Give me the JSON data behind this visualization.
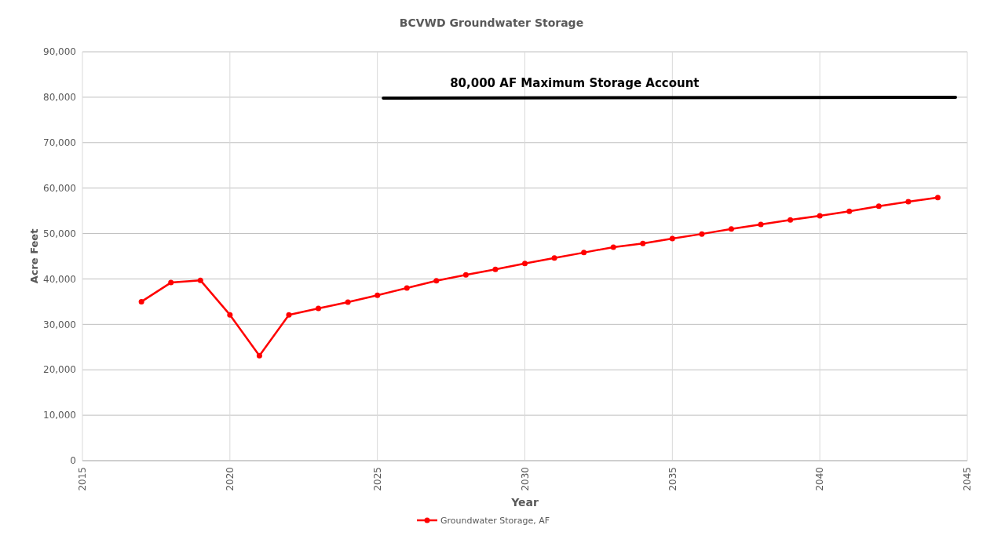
{
  "chart_data": {
    "type": "line",
    "title": "BCVWD Groundwater Storage",
    "xlabel": "Year",
    "ylabel": "Acre Feet",
    "xlim": [
      2015,
      2045
    ],
    "xticks": [
      2015,
      2020,
      2025,
      2030,
      2035,
      2040,
      2045
    ],
    "ylim": [
      0,
      90000
    ],
    "yticks": [
      {
        "value": 0,
        "label": "0"
      },
      {
        "value": 10000,
        "label": "10,000"
      },
      {
        "value": 20000,
        "label": "20,000"
      },
      {
        "value": 30000,
        "label": "30,000"
      },
      {
        "value": 40000,
        "label": "40,000"
      },
      {
        "value": 50000,
        "label": "50,000"
      },
      {
        "value": 60000,
        "label": "60,000"
      },
      {
        "value": 70000,
        "label": "70,000"
      },
      {
        "value": 80000,
        "label": "80,000"
      },
      {
        "value": 90000,
        "label": "90,000"
      }
    ],
    "grid": true,
    "legend": "bottom",
    "marker": "circle",
    "line_style": "solid",
    "series": [
      {
        "name": "Groundwater Storage, AF",
        "color": "#ff0000",
        "x": [
          2017,
          2018,
          2019,
          2020,
          2021,
          2022,
          2023,
          2024,
          2025,
          2026,
          2027,
          2028,
          2029,
          2030,
          2031,
          2032,
          2033,
          2034,
          2035,
          2036,
          2037,
          2038,
          2039,
          2040,
          2041,
          2042,
          2043,
          2044
        ],
        "values": [
          35000,
          39200,
          39700,
          32100,
          23100,
          32100,
          33500,
          34900,
          36400,
          38000,
          39600,
          40900,
          42100,
          43400,
          44600,
          45800,
          47000,
          47800,
          48900,
          49900,
          51000,
          52000,
          53000,
          53900,
          54900,
          56000,
          57000,
          57900
        ]
      },
      {
        "color": "#000000",
        "marker": "none",
        "x": [
          2025.2,
          2044.6
        ],
        "values": [
          79800,
          80000
        ]
      }
    ],
    "annotations": [
      "80,000 AF Maximum Storage Account"
    ]
  }
}
